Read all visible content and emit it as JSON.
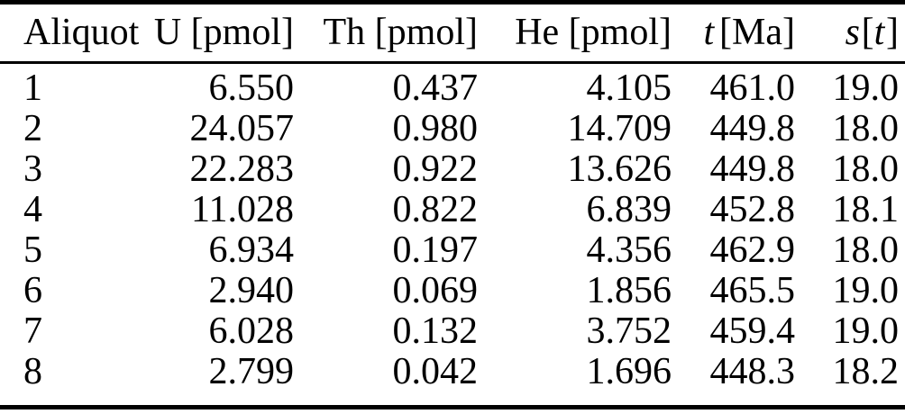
{
  "table": {
    "headers": {
      "aliquot": "Aliquot",
      "u": "U [pmol]",
      "th": "Th [pmol]",
      "he": "He [pmol]",
      "t_symbol": "t",
      "t_unit": "[Ma]",
      "s_symbol": "s",
      "s_open": "[",
      "s_arg": "t",
      "s_close": "]"
    },
    "rows": [
      [
        "1",
        "6.550",
        "0.437",
        "4.105",
        "461.0",
        "19.0"
      ],
      [
        "2",
        "24.057",
        "0.980",
        "14.709",
        "449.8",
        "18.0"
      ],
      [
        "3",
        "22.283",
        "0.922",
        "13.626",
        "449.8",
        "18.0"
      ],
      [
        "4",
        "11.028",
        "0.822",
        "6.839",
        "452.8",
        "18.1"
      ],
      [
        "5",
        "6.934",
        "0.197",
        "4.356",
        "462.9",
        "18.0"
      ],
      [
        "6",
        "2.940",
        "0.069",
        "1.856",
        "465.5",
        "19.0"
      ],
      [
        "7",
        "6.028",
        "0.132",
        "3.752",
        "459.4",
        "19.0"
      ],
      [
        "8",
        "2.799",
        "0.042",
        "1.696",
        "448.3",
        "18.2"
      ]
    ]
  },
  "colors": {
    "background": "#ffffff",
    "text": "#000000",
    "rule": "#000000"
  }
}
